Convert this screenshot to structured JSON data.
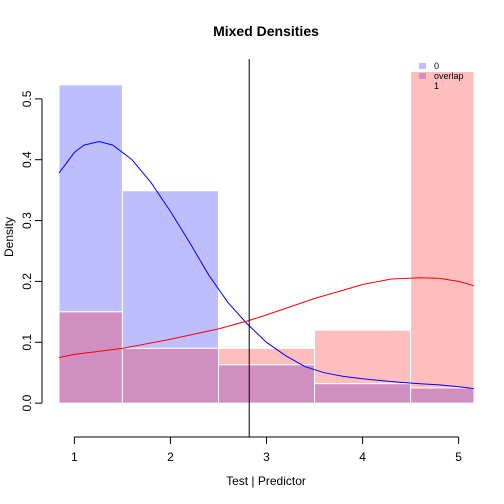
{
  "chart_data": {
    "type": "histogram",
    "title": "Mixed Densities",
    "xlabel": "Test | Predictor",
    "ylabel": "Density",
    "xlim": [
      0.84,
      5.16
    ],
    "ylim": [
      -0.0195,
      0.5655
    ],
    "x_ticks": [
      1,
      2,
      3,
      4,
      5
    ],
    "y_ticks": [
      0.0,
      0.1,
      0.2,
      0.3,
      0.4,
      0.5
    ],
    "grid": false,
    "legend_position": "top-right",
    "colors": {
      "group0": "#BEBEFF",
      "group1": "#FFBEBE",
      "overlap": "#D08FC0",
      "curve0": "#0000FF",
      "curve1": "#FF0000",
      "cutoff": "#000000"
    },
    "legend": [
      {
        "label": "0",
        "color": "#BEBEFF"
      },
      {
        "label": "overlap",
        "color": "#D08FC0"
      },
      {
        "label": "1",
        "color": "#FFBEBE"
      }
    ],
    "bins": [
      {
        "x0": 0.84,
        "x1": 1.5,
        "d0": 0.523,
        "d1": 0.15
      },
      {
        "x0": 1.5,
        "x1": 2.5,
        "d0": 0.349,
        "d1": 0.09
      },
      {
        "x0": 2.5,
        "x1": 3.5,
        "d0": 0.063,
        "d1": 0.09
      },
      {
        "x0": 3.5,
        "x1": 4.5,
        "d0": 0.032,
        "d1": 0.12
      },
      {
        "x0": 4.5,
        "x1": 5.16,
        "d0": 0.025,
        "d1": 0.545
      }
    ],
    "density_curves": [
      {
        "group": "0",
        "x": [
          0.84,
          1.0,
          1.1,
          1.26,
          1.4,
          1.6,
          1.8,
          2.0,
          2.2,
          2.4,
          2.6,
          2.8,
          3.0,
          3.2,
          3.4,
          3.6,
          3.8,
          4.0,
          4.2,
          4.4,
          4.6,
          4.8,
          5.0,
          5.16
        ],
        "y": [
          0.378,
          0.412,
          0.424,
          0.43,
          0.424,
          0.4,
          0.362,
          0.315,
          0.264,
          0.21,
          0.165,
          0.13,
          0.1,
          0.078,
          0.06,
          0.05,
          0.044,
          0.04,
          0.037,
          0.034,
          0.032,
          0.03,
          0.027,
          0.024
        ]
      },
      {
        "group": "1",
        "x": [
          0.84,
          1.0,
          1.5,
          2.0,
          2.5,
          2.8,
          3.0,
          3.5,
          4.0,
          4.3,
          4.6,
          4.8,
          5.0,
          5.16
        ],
        "y": [
          0.075,
          0.08,
          0.09,
          0.105,
          0.122,
          0.135,
          0.145,
          0.172,
          0.195,
          0.204,
          0.206,
          0.205,
          0.2,
          0.193
        ]
      }
    ],
    "cutoff_x": 2.82
  }
}
